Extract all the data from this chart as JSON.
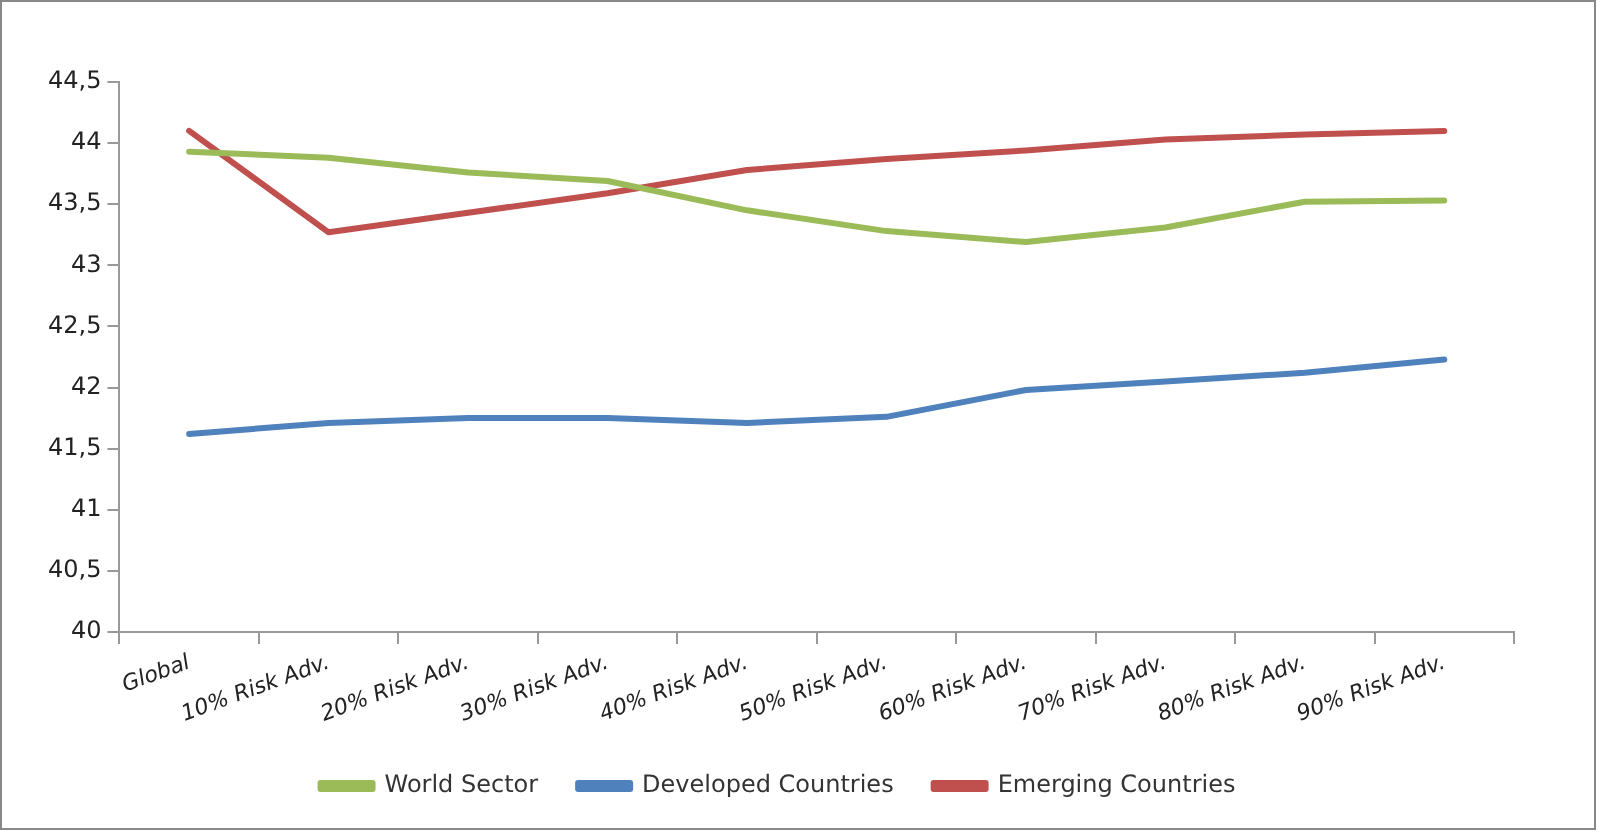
{
  "chart_data": {
    "type": "line",
    "categories": [
      "Global",
      "10% Risk Adv.",
      "20% Risk Adv.",
      "30% Risk Adv.",
      "40% Risk Adv.",
      "50% Risk Adv.",
      "60% Risk Adv.",
      "70% Risk Adv.",
      "80% Risk Adv.",
      "90% Risk Adv."
    ],
    "series": [
      {
        "name": "World Sector",
        "color": "#9bbb59",
        "values": [
          43.93,
          43.88,
          43.76,
          43.69,
          43.45,
          43.28,
          43.19,
          43.31,
          43.52,
          43.53
        ]
      },
      {
        "name": "Developed Countries",
        "color": "#4f81bd",
        "values": [
          41.62,
          41.71,
          41.75,
          41.75,
          41.71,
          41.76,
          41.98,
          42.05,
          42.12,
          42.23
        ]
      },
      {
        "name": "Emerging Countries",
        "color": "#c0504d",
        "values": [
          44.1,
          43.27,
          43.43,
          43.59,
          43.78,
          43.87,
          43.94,
          44.03,
          44.07,
          44.1
        ]
      }
    ],
    "ylim": [
      40,
      44.5
    ],
    "yticks": [
      40,
      {
        "value": 40.5,
        "label": "40,5"
      },
      41,
      {
        "value": 41.5,
        "label": "41,5"
      },
      42,
      {
        "value": 42.5,
        "label": "42,5"
      },
      43,
      {
        "value": 43.5,
        "label": "43,5"
      },
      44,
      {
        "value": 44.5,
        "label": "44,5"
      }
    ],
    "grid": false,
    "legend": "bottom",
    "marker": "none",
    "line_style": "solid"
  }
}
